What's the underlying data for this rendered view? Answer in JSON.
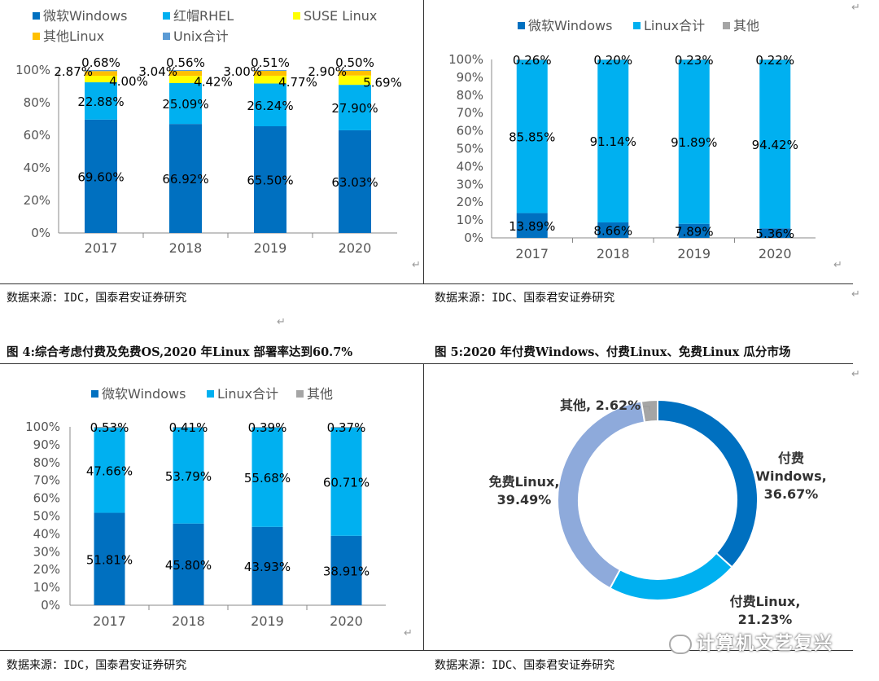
{
  "captions": {
    "fig4": "图 4:综合考虑付费及免费OS,2020 年Linux 部署率达到60.7%",
    "fig5": "图 5:2020 年付费Windows、付费Linux、免费Linux 瓜分市场"
  },
  "sources": {
    "tl": "数据来源：IDC，国泰君安证券研究",
    "tr": "数据来源：IDC、国泰君安证券研究",
    "bl": "数据来源：IDC，国泰君安证券研究",
    "br": "数据来源：IDC、国泰君安证券研究"
  },
  "watermark": "计算机文艺复兴",
  "chart_data": [
    {
      "id": "server-os-share",
      "type": "bar",
      "stacked": true,
      "categories": [
        "2017",
        "2018",
        "2019",
        "2020"
      ],
      "ylim": [
        0,
        100
      ],
      "yticks": [
        "0%",
        "20%",
        "40%",
        "60%",
        "80%",
        "100%"
      ],
      "legend_position": "top",
      "series": [
        {
          "name": "微软Windows",
          "color": "#0070c0",
          "values": [
            69.6,
            66.92,
            65.5,
            63.03
          ],
          "labels": [
            "69.60%",
            "66.92%",
            "65.50%",
            "63.03%"
          ]
        },
        {
          "name": "红帽RHEL",
          "color": "#00b0f0",
          "values": [
            22.88,
            25.09,
            26.24,
            27.9
          ],
          "labels": [
            "22.88%",
            "25.09%",
            "26.24%",
            "27.90%"
          ]
        },
        {
          "name": "SUSE Linux",
          "color": "#ffff00",
          "values": [
            4.0,
            4.42,
            4.77,
            5.69
          ],
          "labels": [
            "4.00%",
            "4.42%",
            "4.77%",
            "5.69%"
          ]
        },
        {
          "name": "其他Linux",
          "color": "#ffc000",
          "values": [
            2.87,
            3.04,
            3.0,
            2.9
          ],
          "labels": [
            "2.87%",
            "3.04%",
            "3.00%",
            "2.90%"
          ]
        },
        {
          "name": "Unix合计",
          "color": "#5b9bd5",
          "values": [
            0.68,
            0.56,
            0.51,
            0.5
          ],
          "labels": [
            "0.68%",
            "0.56%",
            "0.51%",
            "0.50%"
          ]
        }
      ]
    },
    {
      "id": "paid-os-share",
      "type": "bar",
      "stacked": true,
      "categories": [
        "2017",
        "2018",
        "2019",
        "2020"
      ],
      "ylim": [
        0,
        100
      ],
      "yticks": [
        "0%",
        "10%",
        "20%",
        "30%",
        "40%",
        "50%",
        "60%",
        "70%",
        "80%",
        "90%",
        "100%"
      ],
      "legend_position": "top",
      "series": [
        {
          "name": "微软Windows",
          "color": "#0070c0",
          "values": [
            13.89,
            8.66,
            7.89,
            5.36
          ],
          "labels": [
            "13.89%",
            "8.66%",
            "7.89%",
            "5.36%"
          ]
        },
        {
          "name": "Linux合计",
          "color": "#00b0f0",
          "values": [
            85.85,
            91.14,
            91.89,
            94.42
          ],
          "labels": [
            "85.85%",
            "91.14%",
            "91.89%",
            "94.42%"
          ]
        },
        {
          "name": "其他",
          "color": "#a5a5a5",
          "values": [
            0.26,
            0.2,
            0.23,
            0.22
          ],
          "labels": [
            "0.26%",
            "0.20%",
            "0.23%",
            "0.22%"
          ]
        }
      ]
    },
    {
      "id": "combined-os-share",
      "type": "bar",
      "stacked": true,
      "categories": [
        "2017",
        "2018",
        "2019",
        "2020"
      ],
      "ylim": [
        0,
        100
      ],
      "yticks": [
        "0%",
        "10%",
        "20%",
        "30%",
        "40%",
        "50%",
        "60%",
        "70%",
        "80%",
        "90%",
        "100%"
      ],
      "legend_position": "top",
      "series": [
        {
          "name": "微软Windows",
          "color": "#0070c0",
          "values": [
            51.81,
            45.8,
            43.93,
            38.91
          ],
          "labels": [
            "51.81%",
            "45.80%",
            "43.93%",
            "38.91%"
          ]
        },
        {
          "name": "Linux合计",
          "color": "#00b0f0",
          "values": [
            47.66,
            53.79,
            55.68,
            60.71
          ],
          "labels": [
            "47.66%",
            "53.79%",
            "55.68%",
            "60.71%"
          ]
        },
        {
          "name": "其他",
          "color": "#a5a5a5",
          "values": [
            0.53,
            0.41,
            0.39,
            0.37
          ],
          "labels": [
            "0.53%",
            "0.41%",
            "0.39%",
            "0.37%"
          ]
        }
      ]
    },
    {
      "id": "market-split-2020",
      "type": "pie",
      "donut": true,
      "slices": [
        {
          "name": "付费Windows",
          "value": 36.67,
          "color": "#0070c0",
          "label_lines": [
            "付费",
            "Windows,",
            "36.67%"
          ]
        },
        {
          "name": "付费Linux",
          "value": 21.23,
          "color": "#00b0f0",
          "label_lines": [
            "付费Linux,",
            "21.23%"
          ]
        },
        {
          "name": "免费Linux",
          "value": 39.49,
          "color": "#8eaadb",
          "label_lines": [
            "免费Linux,",
            "39.49%"
          ]
        },
        {
          "name": "其他",
          "value": 2.62,
          "color": "#a5a5a5",
          "label_lines": [
            "其他, 2.62%"
          ]
        }
      ]
    }
  ]
}
